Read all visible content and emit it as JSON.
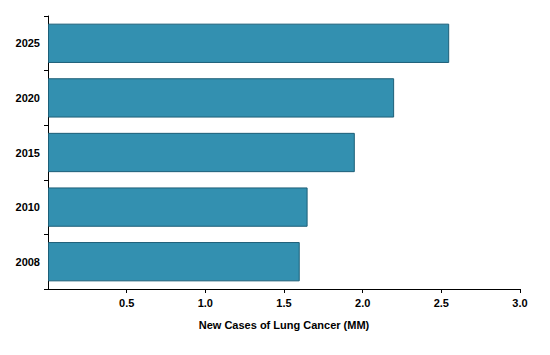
{
  "chart_data": {
    "type": "bar",
    "orientation": "horizontal",
    "categories": [
      "2008",
      "2010",
      "2015",
      "2020",
      "2025"
    ],
    "values": [
      1.6,
      1.65,
      1.95,
      2.2,
      2.55
    ],
    "color": "#3390b0",
    "x_label": "New Cases of Lung Cancer (MM)",
    "xlim": [
      0,
      3
    ],
    "xticks": [
      0.5,
      {
        "value": 1,
        "label": "1.0"
      },
      1.5,
      {
        "value": 2,
        "label": "2.0"
      },
      2.5,
      {
        "value": 3,
        "label": "3.0"
      }
    ],
    "grid": false
  }
}
